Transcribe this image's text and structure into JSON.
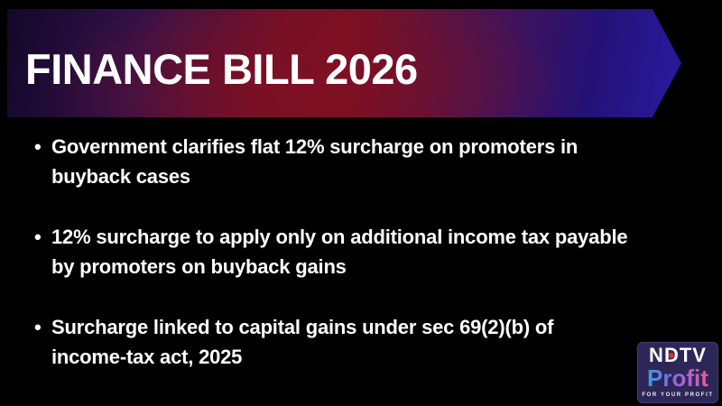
{
  "slide": {
    "title": "FINANCE BILL 2026",
    "bullet_glyph": "•",
    "bullets": [
      {
        "line1": "Government clarifies flat 12% surcharge on promoters in",
        "line2": "buyback cases"
      },
      {
        "line1": "12% surcharge to apply only on additional income tax payable",
        "line2": "by promoters on buyback gains"
      },
      {
        "line1": "Surcharge linked to capital gains under sec 69(2)(b) of",
        "line2": "income-tax act, 2025"
      }
    ]
  },
  "logo": {
    "brand_n": "N",
    "brand_d": "D",
    "brand_tv": "TV",
    "brand_product": "Profit",
    "tagline": "FOR YOUR PROFIT"
  },
  "colors": {
    "background": "#000000",
    "banner_gradient_left": "#130829",
    "banner_gradient_center": "#7e1022",
    "banner_gradient_right": "#2b19a0",
    "title_text": "#ffffff",
    "bullet_text": "#ffffff",
    "logo_background": "#2d2757",
    "logo_dot_red": "#e03330",
    "profit_gradient_start": "#3d9be0",
    "profit_gradient_end": "#f05a9c"
  }
}
